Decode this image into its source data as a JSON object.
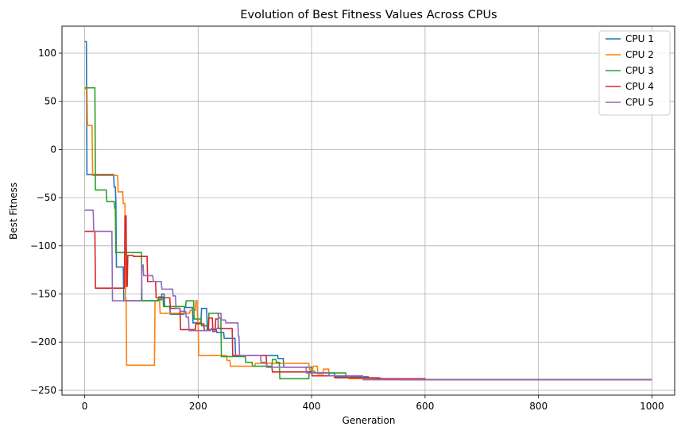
{
  "chart_data": {
    "type": "line",
    "title": "Evolution of Best Fitness Values Across CPUs",
    "xlabel": "Generation",
    "ylabel": "Best Fitness",
    "xlim": [
      -40,
      1040
    ],
    "ylim": [
      -255,
      128
    ],
    "xticks": [
      0,
      200,
      400,
      600,
      800,
      1000
    ],
    "yticks": [
      100,
      50,
      0,
      -50,
      -100,
      -150,
      -200,
      -250
    ],
    "grid": true,
    "legend_position": "top-right",
    "series": [
      {
        "name": "CPU 1",
        "color": "#1f77b4",
        "step_points": [
          [
            0,
            112
          ],
          [
            3,
            112
          ],
          [
            4,
            -26
          ],
          [
            51,
            -26
          ],
          [
            52,
            -39
          ],
          [
            54,
            -39
          ],
          [
            55,
            -54
          ],
          [
            56,
            -122
          ],
          [
            68,
            -122
          ],
          [
            69,
            -157
          ],
          [
            128,
            -157
          ],
          [
            129,
            -156
          ],
          [
            135,
            -156
          ],
          [
            136,
            -150
          ],
          [
            140,
            -150
          ],
          [
            141,
            -163
          ],
          [
            150,
            -163
          ],
          [
            151,
            -171
          ],
          [
            175,
            -171
          ],
          [
            176,
            -164
          ],
          [
            190,
            -164
          ],
          [
            191,
            -180
          ],
          [
            205,
            -180
          ],
          [
            206,
            -165
          ],
          [
            215,
            -165
          ],
          [
            216,
            -187
          ],
          [
            232,
            -187
          ],
          [
            233,
            -190
          ],
          [
            245,
            -190
          ],
          [
            246,
            -196
          ],
          [
            265,
            -196
          ],
          [
            266,
            -214
          ],
          [
            340,
            -214
          ],
          [
            341,
            -217
          ],
          [
            350,
            -217
          ],
          [
            351,
            -226
          ],
          [
            400,
            -226
          ],
          [
            401,
            -232
          ],
          [
            440,
            -232
          ],
          [
            441,
            -236
          ],
          [
            500,
            -236
          ],
          [
            501,
            -238
          ],
          [
            550,
            -238
          ],
          [
            551,
            -239
          ],
          [
            1000,
            -239
          ]
        ]
      },
      {
        "name": "CPU 2",
        "color": "#ff7f0e",
        "step_points": [
          [
            0,
            63
          ],
          [
            4,
            63
          ],
          [
            5,
            25
          ],
          [
            13,
            25
          ],
          [
            14,
            -27
          ],
          [
            58,
            -27
          ],
          [
            59,
            -44
          ],
          [
            67,
            -44
          ],
          [
            68,
            -56
          ],
          [
            71,
            -56
          ],
          [
            72,
            -155
          ],
          [
            73,
            -155
          ],
          [
            74,
            -224
          ],
          [
            123,
            -224
          ],
          [
            124,
            -157
          ],
          [
            132,
            -157
          ],
          [
            133,
            -170
          ],
          [
            185,
            -170
          ],
          [
            186,
            -167
          ],
          [
            195,
            -167
          ],
          [
            196,
            -157
          ],
          [
            198,
            -157
          ],
          [
            199,
            -178
          ],
          [
            200,
            -178
          ],
          [
            201,
            -214
          ],
          [
            250,
            -214
          ],
          [
            251,
            -219
          ],
          [
            256,
            -219
          ],
          [
            257,
            -225
          ],
          [
            300,
            -225
          ],
          [
            301,
            -222
          ],
          [
            395,
            -222
          ],
          [
            396,
            -228
          ],
          [
            402,
            -228
          ],
          [
            403,
            -225
          ],
          [
            410,
            -225
          ],
          [
            411,
            -233
          ],
          [
            420,
            -233
          ],
          [
            421,
            -228
          ],
          [
            430,
            -228
          ],
          [
            431,
            -235
          ],
          [
            465,
            -235
          ],
          [
            466,
            -238
          ],
          [
            530,
            -238
          ],
          [
            531,
            -239
          ],
          [
            1000,
            -239
          ]
        ]
      },
      {
        "name": "CPU 3",
        "color": "#2ca02c",
        "step_points": [
          [
            0,
            64
          ],
          [
            18,
            64
          ],
          [
            19,
            -42
          ],
          [
            38,
            -42
          ],
          [
            39,
            -54
          ],
          [
            52,
            -54
          ],
          [
            53,
            -61
          ],
          [
            54,
            -61
          ],
          [
            55,
            -107
          ],
          [
            100,
            -107
          ],
          [
            101,
            -157
          ],
          [
            130,
            -157
          ],
          [
            131,
            -153
          ],
          [
            138,
            -153
          ],
          [
            139,
            -163
          ],
          [
            178,
            -163
          ],
          [
            179,
            -157
          ],
          [
            192,
            -157
          ],
          [
            193,
            -176
          ],
          [
            205,
            -176
          ],
          [
            206,
            -183
          ],
          [
            218,
            -183
          ],
          [
            219,
            -170
          ],
          [
            235,
            -170
          ],
          [
            236,
            -175
          ],
          [
            240,
            -175
          ],
          [
            241,
            -215
          ],
          [
            283,
            -215
          ],
          [
            284,
            -221
          ],
          [
            295,
            -221
          ],
          [
            296,
            -225
          ],
          [
            330,
            -225
          ],
          [
            331,
            -218
          ],
          [
            337,
            -218
          ],
          [
            338,
            -221
          ],
          [
            343,
            -221
          ],
          [
            344,
            -238
          ],
          [
            395,
            -238
          ],
          [
            396,
            -230
          ],
          [
            405,
            -230
          ],
          [
            406,
            -232
          ],
          [
            460,
            -232
          ],
          [
            461,
            -237
          ],
          [
            510,
            -237
          ],
          [
            511,
            -238
          ],
          [
            560,
            -238
          ],
          [
            561,
            -239
          ],
          [
            1000,
            -239
          ]
        ]
      },
      {
        "name": "CPU 4",
        "color": "#d62728",
        "step_points": [
          [
            0,
            -85
          ],
          [
            18,
            -85
          ],
          [
            19,
            -144
          ],
          [
            70,
            -144
          ],
          [
            71,
            -69
          ],
          [
            73,
            -69
          ],
          [
            74,
            -142
          ],
          [
            75,
            -142
          ],
          [
            76,
            -110
          ],
          [
            85,
            -110
          ],
          [
            86,
            -111
          ],
          [
            110,
            -111
          ],
          [
            111,
            -137
          ],
          [
            125,
            -137
          ],
          [
            126,
            -154
          ],
          [
            150,
            -154
          ],
          [
            151,
            -165
          ],
          [
            168,
            -165
          ],
          [
            169,
            -187
          ],
          [
            195,
            -187
          ],
          [
            196,
            -181
          ],
          [
            210,
            -181
          ],
          [
            211,
            -188
          ],
          [
            218,
            -188
          ],
          [
            219,
            -175
          ],
          [
            225,
            -175
          ],
          [
            226,
            -189
          ],
          [
            230,
            -189
          ],
          [
            231,
            -176
          ],
          [
            235,
            -176
          ],
          [
            236,
            -186
          ],
          [
            260,
            -186
          ],
          [
            261,
            -214
          ],
          [
            320,
            -214
          ],
          [
            321,
            -226
          ],
          [
            330,
            -226
          ],
          [
            331,
            -231
          ],
          [
            400,
            -231
          ],
          [
            401,
            -235
          ],
          [
            440,
            -235
          ],
          [
            441,
            -237
          ],
          [
            520,
            -237
          ],
          [
            521,
            -238
          ],
          [
            600,
            -238
          ],
          [
            601,
            -239
          ],
          [
            1000,
            -239
          ]
        ]
      },
      {
        "name": "CPU 5",
        "color": "#9467bd",
        "step_points": [
          [
            0,
            -63
          ],
          [
            15,
            -63
          ],
          [
            16,
            -85
          ],
          [
            48,
            -85
          ],
          [
            49,
            -157
          ],
          [
            100,
            -157
          ],
          [
            101,
            -120
          ],
          [
            103,
            -120
          ],
          [
            104,
            -131
          ],
          [
            120,
            -131
          ],
          [
            121,
            -137
          ],
          [
            135,
            -137
          ],
          [
            136,
            -145
          ],
          [
            155,
            -145
          ],
          [
            156,
            -152
          ],
          [
            160,
            -152
          ],
          [
            161,
            -165
          ],
          [
            168,
            -165
          ],
          [
            169,
            -168
          ],
          [
            178,
            -168
          ],
          [
            179,
            -174
          ],
          [
            183,
            -174
          ],
          [
            184,
            -188
          ],
          [
            222,
            -188
          ],
          [
            223,
            -186
          ],
          [
            235,
            -186
          ],
          [
            236,
            -170
          ],
          [
            240,
            -170
          ],
          [
            241,
            -177
          ],
          [
            248,
            -177
          ],
          [
            249,
            -180
          ],
          [
            270,
            -180
          ],
          [
            271,
            -194
          ],
          [
            272,
            -194
          ],
          [
            273,
            -214
          ],
          [
            310,
            -214
          ],
          [
            311,
            -221
          ],
          [
            320,
            -221
          ],
          [
            321,
            -226
          ],
          [
            390,
            -226
          ],
          [
            391,
            -232
          ],
          [
            430,
            -232
          ],
          [
            431,
            -235
          ],
          [
            490,
            -235
          ],
          [
            491,
            -239
          ],
          [
            1000,
            -239
          ]
        ]
      }
    ]
  }
}
